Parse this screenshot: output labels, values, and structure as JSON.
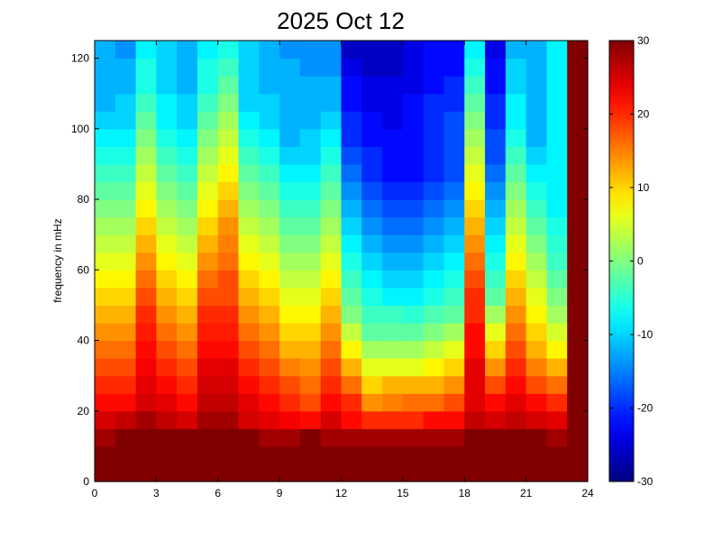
{
  "chart_data": {
    "type": "heatmap",
    "title": "2025 Oct 12",
    "xlabel": "",
    "ylabel": "frequency in mHz",
    "xlim": [
      0,
      24
    ],
    "ylim": [
      0,
      125
    ],
    "xticks": [
      0,
      3,
      6,
      9,
      12,
      15,
      18,
      21,
      24
    ],
    "yticks": [
      0,
      20,
      40,
      60,
      80,
      100,
      120
    ],
    "colorbar": {
      "clim": [
        -30,
        30
      ],
      "ticks": [
        -30,
        -20,
        -10,
        0,
        10,
        20,
        30
      ],
      "colormap": "jet"
    },
    "grid": false,
    "x": [
      0.5,
      1.5,
      2.5,
      3.5,
      4.5,
      5.5,
      6.5,
      7.5,
      8.5,
      9.5,
      10.5,
      11.5,
      12.5,
      13.5,
      14.5,
      15.5,
      16.5,
      17.5,
      18.5,
      19.5,
      20.5,
      21.5,
      22.5,
      23.5
    ],
    "y": [
      2.5,
      7.5,
      12.5,
      17.5,
      22.5,
      27.5,
      32.5,
      37.5,
      42.5,
      47.5,
      52.5,
      57.5,
      62.5,
      67.5,
      72.5,
      77.5,
      82.5,
      87.5,
      92.5,
      97.5,
      102.5,
      107.5,
      112.5,
      117.5,
      122.5
    ],
    "z": [
      [
        30,
        30,
        30,
        30,
        30,
        30,
        30,
        30,
        30,
        30,
        30,
        30,
        30,
        30,
        30,
        30,
        30,
        30,
        30,
        30,
        30,
        30,
        30,
        30
      ],
      [
        30,
        30,
        30,
        30,
        30,
        30,
        30,
        30,
        30,
        30,
        30,
        30,
        30,
        30,
        30,
        30,
        30,
        30,
        30,
        30,
        30,
        30,
        30,
        30
      ],
      [
        28,
        30,
        30,
        30,
        30,
        30,
        30,
        30,
        28,
        28,
        30,
        28,
        28,
        28,
        28,
        28,
        28,
        28,
        30,
        30,
        30,
        30,
        28,
        30
      ],
      [
        25,
        26,
        28,
        26,
        25,
        28,
        28,
        25,
        24,
        23,
        22,
        25,
        22,
        20,
        20,
        20,
        22,
        22,
        26,
        25,
        26,
        25,
        24,
        30
      ],
      [
        22,
        22,
        25,
        24,
        22,
        26,
        26,
        24,
        22,
        20,
        18,
        22,
        20,
        14,
        15,
        16,
        16,
        18,
        24,
        22,
        24,
        22,
        20,
        30
      ],
      [
        20,
        20,
        24,
        22,
        20,
        25,
        25,
        22,
        20,
        18,
        16,
        20,
        16,
        10,
        12,
        12,
        12,
        14,
        24,
        18,
        22,
        18,
        16,
        30
      ],
      [
        18,
        18,
        23,
        20,
        18,
        24,
        24,
        20,
        18,
        15,
        14,
        18,
        12,
        6,
        6,
        6,
        8,
        10,
        24,
        14,
        20,
        15,
        12,
        30
      ],
      [
        16,
        16,
        22,
        18,
        16,
        22,
        22,
        18,
        16,
        12,
        12,
        16,
        8,
        2,
        2,
        2,
        4,
        6,
        22,
        10,
        18,
        12,
        8,
        30
      ],
      [
        14,
        14,
        21,
        16,
        14,
        21,
        21,
        16,
        14,
        10,
        10,
        14,
        4,
        -2,
        -2,
        -2,
        0,
        2,
        22,
        6,
        16,
        10,
        5,
        30
      ],
      [
        12,
        12,
        20,
        14,
        12,
        20,
        20,
        14,
        12,
        8,
        8,
        12,
        0,
        -4,
        -4,
        -5,
        -3,
        -2,
        20,
        2,
        14,
        8,
        2,
        30
      ],
      [
        10,
        10,
        18,
        12,
        10,
        18,
        18,
        12,
        10,
        6,
        6,
        10,
        -2,
        -6,
        -8,
        -8,
        -6,
        -4,
        20,
        -2,
        12,
        6,
        0,
        30
      ],
      [
        8,
        8,
        16,
        10,
        8,
        16,
        18,
        10,
        8,
        4,
        4,
        8,
        -4,
        -8,
        -10,
        -10,
        -8,
        -6,
        18,
        -4,
        10,
        4,
        -2,
        30
      ],
      [
        6,
        6,
        14,
        8,
        6,
        14,
        16,
        8,
        6,
        2,
        2,
        6,
        -6,
        -10,
        -12,
        -12,
        -10,
        -8,
        16,
        -6,
        8,
        2,
        -4,
        30
      ],
      [
        4,
        4,
        12,
        6,
        4,
        12,
        15,
        6,
        4,
        0,
        0,
        4,
        -8,
        -12,
        -14,
        -14,
        -12,
        -10,
        14,
        -8,
        6,
        0,
        -5,
        30
      ],
      [
        2,
        2,
        10,
        4,
        2,
        10,
        14,
        4,
        2,
        -2,
        -2,
        2,
        -10,
        -14,
        -16,
        -16,
        -14,
        -12,
        12,
        -10,
        4,
        -2,
        -6,
        30
      ],
      [
        0,
        0,
        8,
        2,
        0,
        8,
        12,
        2,
        0,
        -4,
        -4,
        0,
        -12,
        -16,
        -18,
        -18,
        -16,
        -14,
        10,
        -12,
        2,
        -4,
        -8,
        30
      ],
      [
        -2,
        -2,
        6,
        0,
        -2,
        6,
        10,
        0,
        -2,
        -6,
        -6,
        -2,
        -14,
        -18,
        -20,
        -20,
        -18,
        -16,
        8,
        -14,
        0,
        -6,
        -8,
        30
      ],
      [
        -4,
        -4,
        4,
        -2,
        -4,
        4,
        8,
        -2,
        -4,
        -8,
        -8,
        -4,
        -16,
        -20,
        -22,
        -22,
        -20,
        -18,
        6,
        -16,
        -2,
        -8,
        -8,
        30
      ],
      [
        -6,
        -6,
        2,
        -4,
        -6,
        2,
        6,
        -4,
        -6,
        -10,
        -10,
        -6,
        -18,
        -20,
        -22,
        -22,
        -20,
        -18,
        4,
        -18,
        -4,
        -10,
        -8,
        30
      ],
      [
        -8,
        -8,
        0,
        -6,
        -8,
        0,
        4,
        -6,
        -8,
        -12,
        -10,
        -8,
        -20,
        -22,
        -22,
        -22,
        -20,
        -18,
        2,
        -18,
        -6,
        -12,
        -8,
        30
      ],
      [
        -10,
        -10,
        -2,
        -8,
        -10,
        -2,
        2,
        -8,
        -10,
        -12,
        -12,
        -10,
        -20,
        -22,
        -24,
        -22,
        -20,
        -18,
        0,
        -20,
        -8,
        -12,
        -8,
        30
      ],
      [
        -12,
        -10,
        -4,
        -8,
        -10,
        -4,
        0,
        -10,
        -10,
        -12,
        -12,
        -12,
        -22,
        -24,
        -24,
        -22,
        -20,
        -20,
        -2,
        -20,
        -8,
        -12,
        -8,
        30
      ],
      [
        -12,
        -12,
        -6,
        -10,
        -12,
        -6,
        -2,
        -10,
        -12,
        -12,
        -12,
        -12,
        -22,
        -24,
        -24,
        -24,
        -22,
        -20,
        -4,
        -22,
        -10,
        -12,
        -8,
        30
      ],
      [
        -12,
        -12,
        -6,
        -10,
        -12,
        -6,
        -4,
        -10,
        -12,
        -12,
        -14,
        -14,
        -24,
        -26,
        -26,
        -24,
        -22,
        -22,
        -6,
        -22,
        -10,
        -12,
        -8,
        30
      ],
      [
        -12,
        -14,
        -8,
        -10,
        -12,
        -8,
        -6,
        -10,
        -12,
        -14,
        -14,
        -14,
        -26,
        -26,
        -26,
        -24,
        -22,
        -22,
        -8,
        -24,
        -12,
        -12,
        -8,
        30
      ]
    ]
  }
}
